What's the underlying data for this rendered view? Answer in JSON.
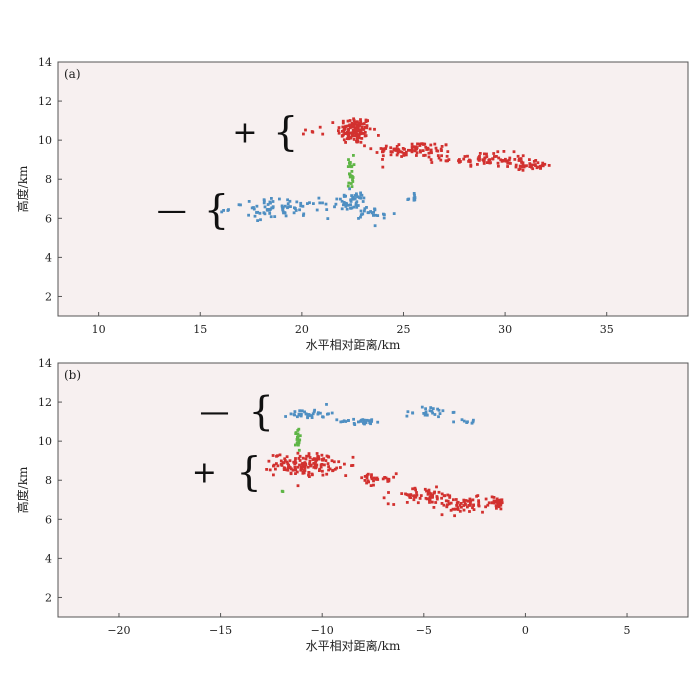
{
  "colors": {
    "positive": "#d2312f",
    "negative": "#4f8fc2",
    "channel": "#5fb546",
    "plot_bg": "#f7f0f0"
  },
  "chart_data": [
    {
      "type": "scatter",
      "panel_label": "(a)",
      "xlabel": "水平相对距离/km",
      "ylabel": "高度/km",
      "xlim": [
        8,
        39
      ],
      "ylim": [
        1,
        14
      ],
      "xticks": [
        10,
        15,
        20,
        25,
        30,
        35
      ],
      "yticks": [
        2,
        4,
        6,
        8,
        10,
        12,
        14
      ],
      "annotations": [
        {
          "text": "+",
          "x": 17.2,
          "y": 10.4,
          "brace_x": 19.2,
          "brace_y": 10.4
        },
        {
          "text": "—",
          "x": 13.6,
          "y": 6.4,
          "brace_x": 15.8,
          "brace_y": 6.4
        }
      ],
      "series": [
        {
          "color_key": "positive",
          "clusters": [
            {
              "cx": 22.6,
              "cy": 10.5,
              "sx": 0.6,
              "sy": 0.5,
              "n": 130
            },
            {
              "cx": 25.5,
              "cy": 9.5,
              "sx": 1.4,
              "sy": 0.3,
              "n": 90
            },
            {
              "cx": 29.0,
              "cy": 9.0,
              "sx": 1.5,
              "sy": 0.25,
              "n": 80
            },
            {
              "cx": 31.3,
              "cy": 8.7,
              "sx": 0.8,
              "sy": 0.15,
              "n": 35
            },
            {
              "cx": 20.6,
              "cy": 10.4,
              "sx": 0.4,
              "sy": 0.1,
              "n": 5
            }
          ]
        },
        {
          "color_key": "channel",
          "clusters": [
            {
              "cx": 22.4,
              "cy": 8.4,
              "sx": 0.1,
              "sy": 0.6,
              "n": 25
            }
          ]
        },
        {
          "color_key": "negative",
          "clusters": [
            {
              "cx": 22.4,
              "cy": 6.8,
              "sx": 0.6,
              "sy": 0.4,
              "n": 50
            },
            {
              "cx": 19.0,
              "cy": 6.5,
              "sx": 1.8,
              "sy": 0.35,
              "n": 80
            },
            {
              "cx": 23.6,
              "cy": 6.2,
              "sx": 0.7,
              "sy": 0.3,
              "n": 20
            },
            {
              "cx": 25.5,
              "cy": 7.1,
              "sx": 0.2,
              "sy": 0.2,
              "n": 8
            }
          ]
        }
      ]
    },
    {
      "type": "scatter",
      "panel_label": "(b)",
      "xlabel": "水平相对距离/km",
      "ylabel": "高度/km",
      "xlim": [
        -23,
        8
      ],
      "ylim": [
        1,
        14
      ],
      "xticks": [
        -20,
        -15,
        -10,
        -5,
        0,
        5
      ],
      "yticks": [
        2,
        4,
        6,
        8,
        10,
        12,
        14
      ],
      "annotations": [
        {
          "text": "+",
          "x": -15.8,
          "y": 8.4,
          "brace_x": -13.6,
          "brace_y": 8.4
        },
        {
          "text": "—",
          "x": -15.3,
          "y": 11.5,
          "brace_x": -13.0,
          "brace_y": 11.5
        }
      ],
      "series": [
        {
          "color_key": "positive",
          "clusters": [
            {
              "cx": -10.8,
              "cy": 8.8,
              "sx": 1.1,
              "sy": 0.4,
              "n": 150
            },
            {
              "cx": -7.5,
              "cy": 8.0,
              "sx": 0.8,
              "sy": 0.3,
              "n": 30
            },
            {
              "cx": -5.0,
              "cy": 7.2,
              "sx": 1.2,
              "sy": 0.3,
              "n": 60
            },
            {
              "cx": -3.0,
              "cy": 6.7,
              "sx": 1.0,
              "sy": 0.3,
              "n": 60
            },
            {
              "cx": -1.4,
              "cy": 6.9,
              "sx": 0.3,
              "sy": 0.2,
              "n": 30
            }
          ]
        },
        {
          "color_key": "channel",
          "clusters": [
            {
              "cx": -11.2,
              "cy": 10.1,
              "sx": 0.08,
              "sy": 0.4,
              "n": 22
            },
            {
              "cx": -11.9,
              "cy": 7.4,
              "sx": 0.2,
              "sy": 0.15,
              "n": 2
            }
          ]
        },
        {
          "color_key": "negative",
          "clusters": [
            {
              "cx": -10.6,
              "cy": 11.4,
              "sx": 0.7,
              "sy": 0.2,
              "n": 35
            },
            {
              "cx": -8.0,
              "cy": 11.0,
              "sx": 0.8,
              "sy": 0.1,
              "n": 30
            },
            {
              "cx": -4.8,
              "cy": 11.5,
              "sx": 0.8,
              "sy": 0.2,
              "n": 25
            },
            {
              "cx": -2.8,
              "cy": 11.0,
              "sx": 0.4,
              "sy": 0.1,
              "n": 8
            }
          ]
        }
      ]
    }
  ]
}
